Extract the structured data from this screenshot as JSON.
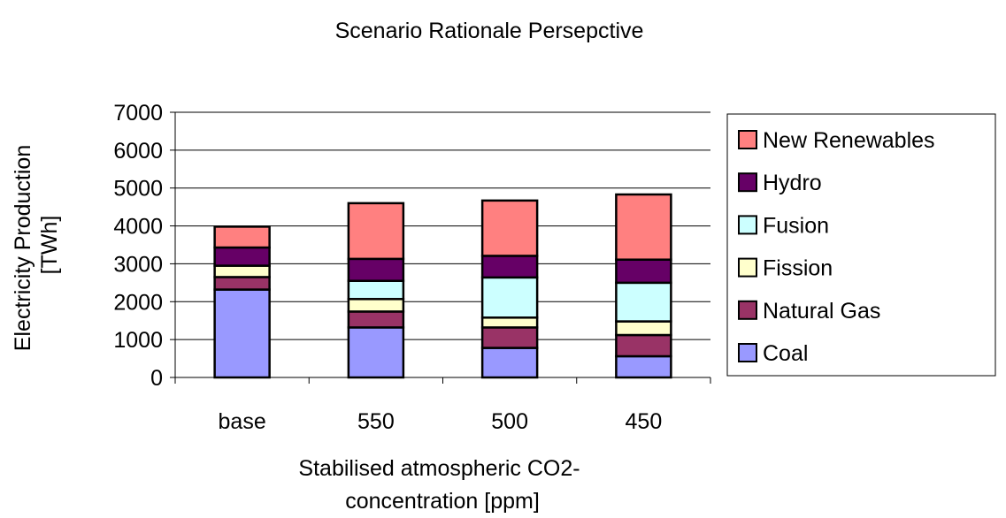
{
  "chart_data": {
    "type": "bar",
    "stacked": true,
    "title": "Scenario Rationale Persepctive",
    "xlabel_lines": [
      "Stabilised atmospheric CO2-",
      "concentration [ppm]"
    ],
    "ylabel_lines": [
      "Electricity Production",
      "[TWh]"
    ],
    "categories": [
      "base",
      "550",
      "500",
      "450"
    ],
    "ylim": [
      0,
      7000
    ],
    "yticks": [
      0,
      1000,
      2000,
      3000,
      4000,
      5000,
      6000,
      7000
    ],
    "grid": true,
    "legend_position": "right",
    "series": [
      {
        "name": "Coal",
        "color": "#9999FF",
        "values": [
          2320,
          1320,
          780,
          560
        ]
      },
      {
        "name": "Natural Gas",
        "color": "#993366",
        "values": [
          330,
          420,
          540,
          560
        ]
      },
      {
        "name": "Fission",
        "color": "#FFFFCC",
        "values": [
          300,
          330,
          260,
          360
        ]
      },
      {
        "name": "Fusion",
        "color": "#CCFFFF",
        "values": [
          0,
          480,
          1060,
          1020
        ]
      },
      {
        "name": "Hydro",
        "color": "#660066",
        "values": [
          480,
          580,
          570,
          610
        ]
      },
      {
        "name": "New Renewables",
        "color": "#FF8080",
        "values": [
          550,
          1470,
          1460,
          1720
        ]
      }
    ]
  }
}
